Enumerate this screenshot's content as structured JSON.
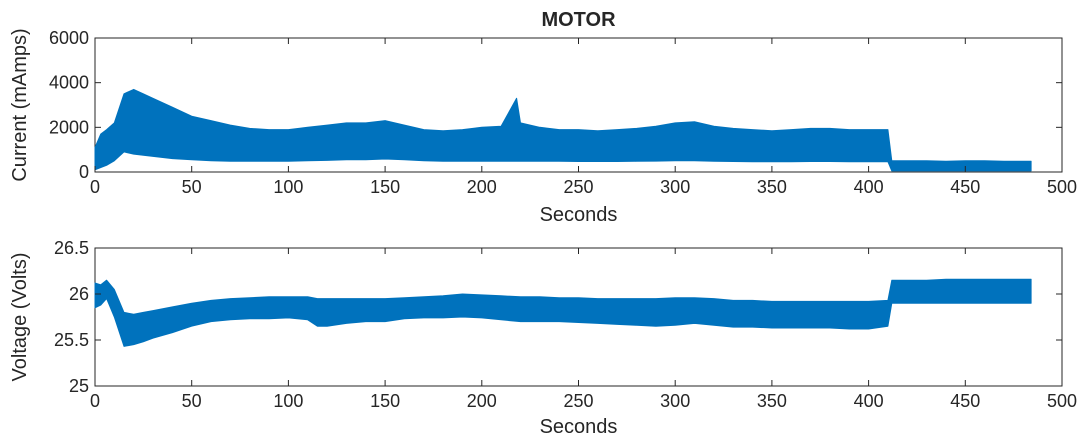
{
  "chart_data": [
    {
      "type": "area",
      "title": "MOTOR",
      "xlabel": "Seconds",
      "ylabel": "Current (mAmps)",
      "xlim": [
        0,
        500
      ],
      "ylim": [
        0,
        6000
      ],
      "xticks": [
        0,
        50,
        100,
        150,
        200,
        250,
        300,
        350,
        400,
        450,
        500
      ],
      "xtick_labels": [
        "0",
        "50",
        "100",
        "150",
        "200",
        "250",
        "300",
        "350",
        "400",
        "450",
        "500"
      ],
      "yticks": [
        0,
        2000,
        4000,
        6000
      ],
      "ytick_labels": [
        "0",
        "2000",
        "4000",
        "6000"
      ],
      "grid": false,
      "color": "#0072BD",
      "series": [
        {
          "x": [
            0,
            3,
            6,
            10,
            15,
            20,
            25,
            30,
            40,
            50,
            60,
            70,
            80,
            90,
            100,
            110,
            120,
            130,
            140,
            150,
            160,
            170,
            180,
            190,
            200,
            210,
            218,
            220,
            230,
            240,
            250,
            260,
            270,
            280,
            290,
            300,
            310,
            320,
            330,
            340,
            350,
            360,
            370,
            380,
            390,
            400,
            410,
            412,
            420,
            430,
            440,
            450,
            460,
            470,
            480,
            484
          ],
          "upper": [
            1100,
            1700,
            1900,
            2200,
            3500,
            3700,
            3500,
            3300,
            2900,
            2500,
            2300,
            2100,
            1950,
            1900,
            1900,
            2000,
            2100,
            2200,
            2200,
            2300,
            2100,
            1900,
            1850,
            1900,
            2000,
            2050,
            3300,
            2200,
            2000,
            1900,
            1900,
            1850,
            1900,
            1950,
            2050,
            2200,
            2250,
            2050,
            1950,
            1900,
            1850,
            1900,
            1950,
            1950,
            1900,
            1900,
            1900,
            500,
            500,
            500,
            480,
            500,
            500,
            480,
            480,
            480
          ],
          "lower": [
            100,
            200,
            300,
            500,
            900,
            800,
            750,
            700,
            600,
            550,
            500,
            480,
            480,
            480,
            480,
            500,
            520,
            550,
            550,
            580,
            550,
            500,
            480,
            480,
            480,
            480,
            480,
            480,
            480,
            480,
            470,
            470,
            470,
            480,
            490,
            500,
            500,
            480,
            470,
            460,
            460,
            460,
            470,
            470,
            460,
            460,
            460,
            50,
            50,
            50,
            50,
            50,
            50,
            50,
            50,
            50
          ]
        }
      ]
    },
    {
      "type": "area",
      "title": "",
      "xlabel": "Seconds",
      "ylabel": "Voltage (Volts)",
      "xlim": [
        0,
        500
      ],
      "ylim": [
        25,
        26.5
      ],
      "xticks": [
        0,
        50,
        100,
        150,
        200,
        250,
        300,
        350,
        400,
        450,
        500
      ],
      "xtick_labels": [
        "0",
        "50",
        "100",
        "150",
        "200",
        "250",
        "300",
        "350",
        "400",
        "450",
        "500"
      ],
      "yticks": [
        25,
        25.5,
        26,
        26.5
      ],
      "ytick_labels": [
        "25",
        "25.5",
        "26",
        "26.5"
      ],
      "grid": false,
      "color": "#0072BD",
      "series": [
        {
          "x": [
            0,
            3,
            6,
            10,
            15,
            20,
            25,
            30,
            40,
            50,
            60,
            70,
            80,
            90,
            100,
            110,
            115,
            120,
            130,
            140,
            150,
            160,
            170,
            180,
            190,
            200,
            210,
            220,
            230,
            240,
            250,
            260,
            270,
            280,
            290,
            300,
            310,
            320,
            330,
            340,
            350,
            360,
            370,
            380,
            390,
            400,
            410,
            412,
            420,
            430,
            440,
            450,
            460,
            470,
            480,
            484
          ],
          "upper": [
            26.12,
            26.1,
            26.15,
            26.05,
            25.8,
            25.78,
            25.8,
            25.82,
            25.86,
            25.9,
            25.93,
            25.95,
            25.96,
            25.97,
            25.97,
            25.97,
            25.95,
            25.95,
            25.95,
            25.95,
            25.95,
            25.96,
            25.97,
            25.98,
            26.0,
            25.99,
            25.98,
            25.97,
            25.97,
            25.96,
            25.96,
            25.95,
            25.95,
            25.95,
            25.95,
            25.96,
            25.96,
            25.95,
            25.93,
            25.93,
            25.92,
            25.92,
            25.92,
            25.92,
            25.92,
            25.92,
            25.93,
            26.15,
            26.15,
            26.15,
            26.16,
            26.16,
            26.16,
            26.16,
            26.16,
            26.16
          ],
          "lower": [
            25.85,
            25.88,
            25.95,
            25.75,
            25.43,
            25.45,
            25.48,
            25.52,
            25.58,
            25.65,
            25.7,
            25.72,
            25.73,
            25.73,
            25.74,
            25.72,
            25.65,
            25.65,
            25.68,
            25.7,
            25.7,
            25.73,
            25.74,
            25.74,
            25.75,
            25.74,
            25.72,
            25.7,
            25.7,
            25.7,
            25.69,
            25.68,
            25.67,
            25.66,
            25.65,
            25.66,
            25.68,
            25.66,
            25.64,
            25.64,
            25.63,
            25.63,
            25.63,
            25.63,
            25.62,
            25.62,
            25.65,
            25.9,
            25.9,
            25.9,
            25.9,
            25.9,
            25.9,
            25.9,
            25.9,
            25.9
          ]
        }
      ]
    }
  ]
}
